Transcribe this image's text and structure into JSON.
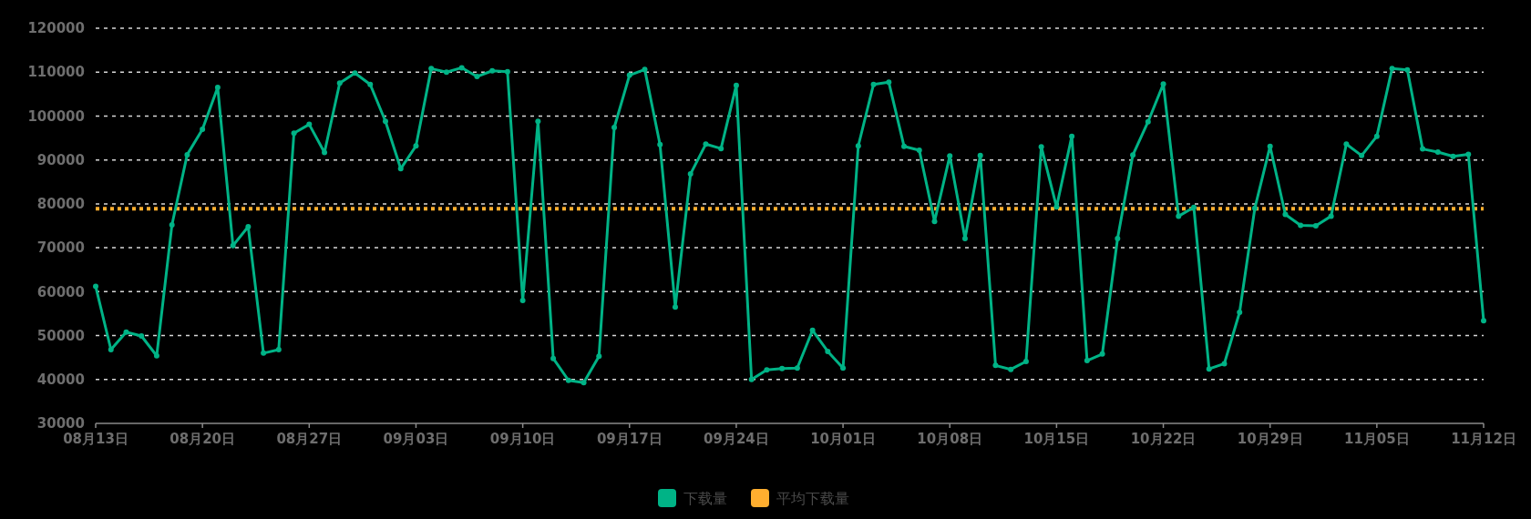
{
  "chart_data": {
    "type": "line",
    "x": [
      "--08-13",
      "--08-14",
      "--08-15",
      "--08-16",
      "--08-17",
      "--08-18",
      "--08-19",
      "--08-20",
      "--08-21",
      "--08-22",
      "--08-23",
      "--08-24",
      "--08-25",
      "--08-26",
      "--08-27",
      "--08-28",
      "--08-29",
      "--08-30",
      "--08-31",
      "--09-01",
      "--09-02",
      "--09-03",
      "--09-04",
      "--09-05",
      "--09-06",
      "--09-07",
      "--09-08",
      "--09-09",
      "--09-10",
      "--09-11",
      "--09-12",
      "--09-13",
      "--09-14",
      "--09-15",
      "--09-16",
      "--09-17",
      "--09-18",
      "--09-19",
      "--09-20",
      "--09-21",
      "--09-22",
      "--09-23",
      "--09-24",
      "--09-25",
      "--09-26",
      "--09-27",
      "--09-28",
      "--09-29",
      "--09-30",
      "--10-01",
      "--10-02",
      "--10-03",
      "--10-04",
      "--10-05",
      "--10-06",
      "--10-07",
      "--10-08",
      "--10-09",
      "--10-10",
      "--10-11",
      "--10-12",
      "--10-13",
      "--10-14",
      "--10-15",
      "--10-16",
      "--10-17",
      "--10-18",
      "--10-19",
      "--10-20",
      "--10-21",
      "--10-22",
      "--10-23",
      "--10-24",
      "--10-25",
      "--10-26",
      "--10-27",
      "--10-28",
      "--10-29",
      "--10-30",
      "--10-31",
      "--11-01",
      "--11-02",
      "--11-03",
      "--11-04",
      "--11-05",
      "--11-06",
      "--11-07",
      "--11-08",
      "--11-09",
      "--11-10",
      "--11-11",
      "--11-12"
    ],
    "series": [
      {
        "name": "下载量",
        "color": "#00b386",
        "values": [
          61200,
          46800,
          50800,
          49900,
          45400,
          75200,
          91200,
          97000,
          106500,
          70500,
          74800,
          46000,
          46800,
          96100,
          98100,
          91700,
          107500,
          109800,
          107200,
          98800,
          88000,
          93200,
          110800,
          110000,
          111000,
          109000,
          110300,
          110100,
          58000,
          98800,
          44800,
          39800,
          39300,
          45300,
          97400,
          109300,
          110600,
          93500,
          56500,
          86800,
          93600,
          92600,
          107000,
          40000,
          42200,
          42500,
          42600,
          51200,
          46400,
          42600,
          93200,
          107200,
          107700,
          93100,
          92200,
          76000,
          90900,
          72100,
          91000,
          43200,
          42300,
          44100,
          93000,
          79300,
          95400,
          44300,
          45800,
          72100,
          91100,
          98700,
          107300,
          77200,
          79200,
          42400,
          43600,
          55300,
          79000,
          93100,
          77600,
          75100,
          75000,
          77200,
          93600,
          91000,
          95400,
          110800,
          110500,
          92500,
          91800,
          90800,
          91300,
          53400
        ]
      }
    ],
    "ref_lines": [
      {
        "axis": "y",
        "value": 78900,
        "label": "平均下载量",
        "color": "#ffae2f",
        "line_style": "dotted"
      }
    ],
    "xlim": [
      "--08-13",
      "--11-12"
    ],
    "xticks": [
      {
        "value": "--08-13",
        "label": "08月13日"
      },
      {
        "value": "--08-20",
        "label": "08月20日"
      },
      {
        "value": "--08-27",
        "label": "08月27日"
      },
      {
        "value": "--09-03",
        "label": "09月03日"
      },
      {
        "value": "--09-10",
        "label": "09月10日"
      },
      {
        "value": "--09-17",
        "label": "09月17日"
      },
      {
        "value": "--09-24",
        "label": "09月24日"
      },
      {
        "value": "--10-01",
        "label": "10月01日"
      },
      {
        "value": "--10-08",
        "label": "10月08日"
      },
      {
        "value": "--10-15",
        "label": "10月15日"
      },
      {
        "value": "--10-22",
        "label": "10月22日"
      },
      {
        "value": "--10-29",
        "label": "10月29日"
      },
      {
        "value": "--11-05",
        "label": "11月05日"
      },
      {
        "value": "--11-12",
        "label": "11月12日"
      }
    ],
    "ylim": [
      30000,
      120000
    ],
    "yticks": [
      30000,
      40000,
      50000,
      60000,
      70000,
      80000,
      90000,
      100000,
      110000,
      120000
    ],
    "grid": "y",
    "legend": "bottom",
    "marker": "circle",
    "line_style": "solid"
  }
}
